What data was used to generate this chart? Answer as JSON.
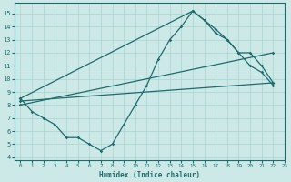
{
  "xlabel": "Humidex (Indice chaleur)",
  "xlim": [
    -0.5,
    23
  ],
  "ylim": [
    3.8,
    15.8
  ],
  "xticks": [
    0,
    1,
    2,
    3,
    4,
    5,
    6,
    7,
    8,
    9,
    10,
    11,
    12,
    13,
    14,
    15,
    16,
    17,
    18,
    19,
    20,
    21,
    22,
    23
  ],
  "yticks": [
    4,
    5,
    6,
    7,
    8,
    9,
    10,
    11,
    12,
    13,
    14,
    15
  ],
  "bg_color": "#cce9e8",
  "line_color": "#1e6b6b",
  "grid_color": "#aad4d2",
  "line1_x": [
    0,
    1,
    2,
    3,
    4,
    5,
    6,
    7,
    8,
    9,
    10,
    11,
    12,
    13,
    14,
    15,
    16,
    17,
    18,
    19,
    20,
    21,
    22
  ],
  "line1_y": [
    8.5,
    7.5,
    7.0,
    6.5,
    5.5,
    5.5,
    5.0,
    4.5,
    5.0,
    6.5,
    8.0,
    9.5,
    11.5,
    13.0,
    14.0,
    15.2,
    14.5,
    13.5,
    13.0,
    12.0,
    11.0,
    10.5,
    9.5
  ],
  "line2_x": [
    0,
    22
  ],
  "line2_y": [
    8.3,
    9.7
  ],
  "line3_x": [
    0,
    22
  ],
  "line3_y": [
    8.0,
    12.0
  ],
  "line4_x": [
    0,
    15,
    16,
    17,
    18,
    19,
    20,
    21,
    22
  ],
  "line4_y": [
    8.5,
    15.2,
    14.5,
    13.8,
    13.0,
    12.0,
    12.0,
    11.0,
    9.7
  ]
}
